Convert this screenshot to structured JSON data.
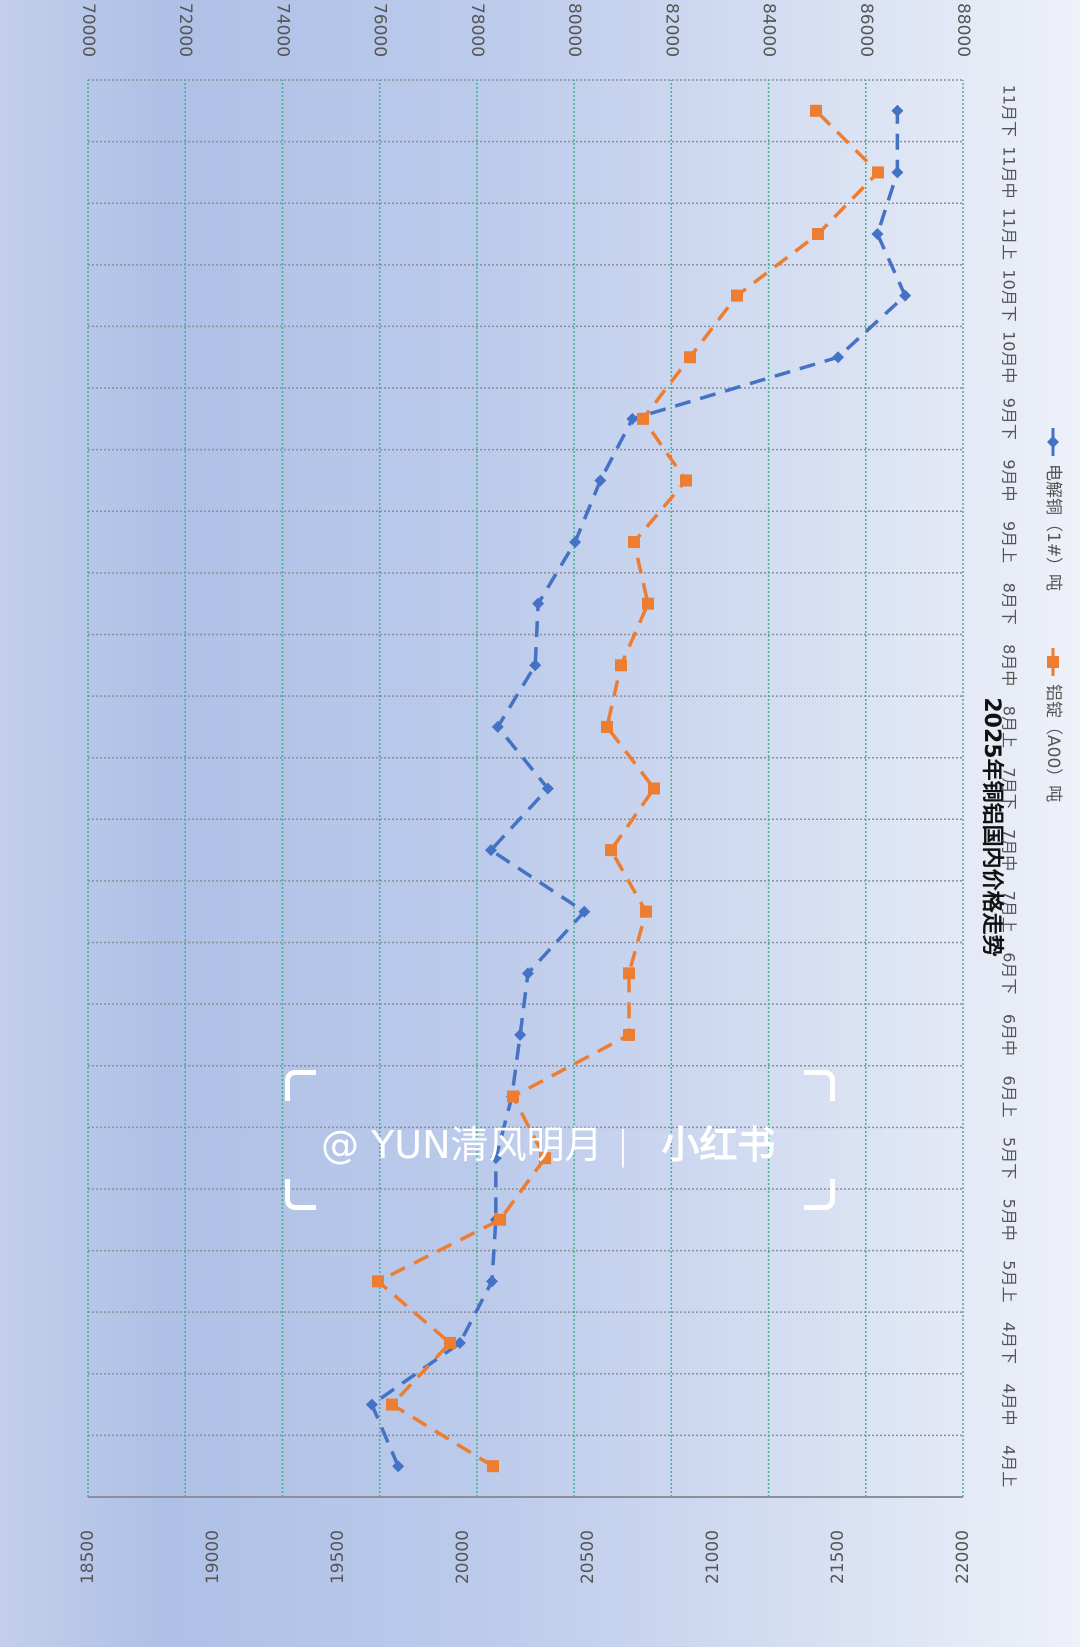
{
  "chart_data": {
    "type": "line",
    "title": "2025年铜铝国内价格走势",
    "orientation_note_visible": "rotated 90deg clockwise",
    "categories": [
      "4月上",
      "4月中",
      "4月下",
      "5月上",
      "5月中",
      "5月下",
      "6月上",
      "6月中",
      "6月下",
      "7月上",
      "7月中",
      "7月下",
      "8月上",
      "8月中",
      "8月下",
      "9月上",
      "9月中",
      "9月下",
      "10月中",
      "10月下",
      "11月上",
      "11月中",
      "11月下"
    ],
    "series": [
      {
        "name": "电解铜（1#）吨",
        "axis": "left",
        "color": "#4472c4",
        "marker": "diamond",
        "line": "dashed",
        "values": [
          76380,
          75840,
          77650,
          78310,
          78390,
          78390,
          78720,
          78890,
          79050,
          80210,
          78290,
          79460,
          78430,
          79200,
          79260,
          80020,
          80540,
          81200,
          85430,
          86810,
          86240,
          86650,
          86650
        ]
      },
      {
        "name": "铝锭（A00）吨",
        "axis": "right",
        "color": "#ed7d31",
        "marker": "square",
        "line": "dashed",
        "values": [
          20120,
          19716,
          19948,
          19660,
          20148,
          20328,
          20200,
          20664,
          20664,
          20732,
          20592,
          20764,
          20576,
          20632,
          20740,
          20684,
          20892,
          20720,
          20908,
          21096,
          21420,
          21660,
          21412
        ]
      }
    ],
    "y_left": {
      "ylim": [
        70000,
        88000
      ],
      "ticks": [
        "70000",
        "72000",
        "74000",
        "76000",
        "78000",
        "80000",
        "82000",
        "84000",
        "86000",
        "88000"
      ]
    },
    "y_right": {
      "ylim": [
        18500,
        22000
      ],
      "ticks": [
        "18500",
        "19000",
        "19500",
        "20000",
        "20500",
        "21000",
        "21500",
        "22000"
      ]
    },
    "xlabel": "",
    "ylabel": "",
    "grid": true,
    "legend_position": "bottom"
  },
  "watermark": {
    "handle": "@ YUN清风明月",
    "separator": "|",
    "brand": "小红书"
  }
}
